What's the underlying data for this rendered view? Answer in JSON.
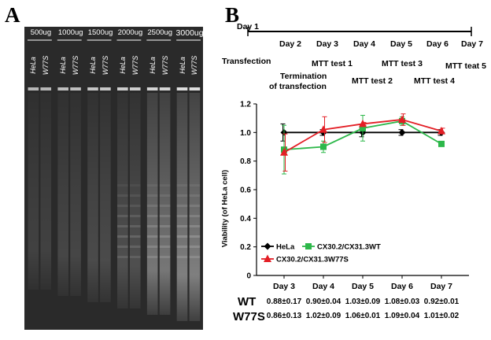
{
  "panels": {
    "a_label": "A",
    "b_label": "B"
  },
  "gel": {
    "lanes": [
      {
        "amount": "500ug",
        "samples": [
          "HeLa",
          "W77S"
        ]
      },
      {
        "amount": "1000ug",
        "samples": [
          "HeLa",
          "W77S"
        ]
      },
      {
        "amount": "1500ug",
        "samples": [
          "HeLa",
          "W77S"
        ]
      },
      {
        "amount": "2000ug",
        "samples": [
          "HeLa",
          "W77S"
        ]
      },
      {
        "amount": "2500ug",
        "samples": [
          "HeLa",
          "W77S"
        ]
      },
      {
        "amount": "3000ug",
        "samples": [
          "HeLa",
          "W77S"
        ]
      }
    ],
    "background_color": "#2a2a2a",
    "band_color": "#e6e6e6"
  },
  "timeline": {
    "days": [
      "Day 1",
      "Day 2",
      "Day 3",
      "Day 4",
      "Day 5",
      "Day 6",
      "Day 7"
    ],
    "events": {
      "transfection": "Transfection",
      "termination_line1": "Termination",
      "termination_line2": "of transfection",
      "mtt1": "MTT test 1",
      "mtt2": "MTT test 2",
      "mtt3": "MTT test 3",
      "mtt4": "MTT test 4",
      "mtt5": "MTT teat 5"
    }
  },
  "chart_data": {
    "type": "line",
    "ylabel": "Viability (of HeLa cell)",
    "xlabel": "",
    "categories": [
      "Day 3",
      "Day 4",
      "Day 5",
      "Day 6",
      "Day 7"
    ],
    "ylim": [
      0,
      1.2
    ],
    "yticks": [
      "0",
      "0.2",
      "0.4",
      "0.6",
      "0.8",
      "1.0",
      "1.2"
    ],
    "series": [
      {
        "name": "HeLa",
        "color": "#000000",
        "marker": "diamond",
        "values": [
          1.0,
          1.0,
          1.0,
          1.0,
          1.0
        ],
        "errors": [
          0.06,
          0.02,
          0.03,
          0.02,
          0.02
        ]
      },
      {
        "name": "CX30.2/CX31.3WT",
        "color": "#2db84a",
        "marker": "square",
        "values": [
          0.88,
          0.9,
          1.03,
          1.08,
          0.92
        ],
        "errors": [
          0.17,
          0.04,
          0.09,
          0.03,
          0.01
        ]
      },
      {
        "name": "CX30.2/CX31.3W77S",
        "color": "#e31e25",
        "marker": "triangle",
        "values": [
          0.86,
          1.02,
          1.06,
          1.09,
          1.01
        ],
        "errors": [
          0.13,
          0.09,
          0.01,
          0.04,
          0.02
        ]
      }
    ],
    "legend": [
      "HeLa",
      "CX30.2/CX31.3WT",
      "CX30.2/CX31.3W77S"
    ]
  },
  "table": {
    "rows": [
      {
        "label": "WT",
        "values": [
          "0.88±0.17",
          "0.90±0.04",
          "1.03±0.09",
          "1.08±0.03",
          "0.92±0.01"
        ]
      },
      {
        "label": "W77S",
        "values": [
          "0.86±0.13",
          "1.02±0.09",
          "1.06±0.01",
          "1.09±0.04",
          "1.01±0.02"
        ]
      }
    ]
  }
}
